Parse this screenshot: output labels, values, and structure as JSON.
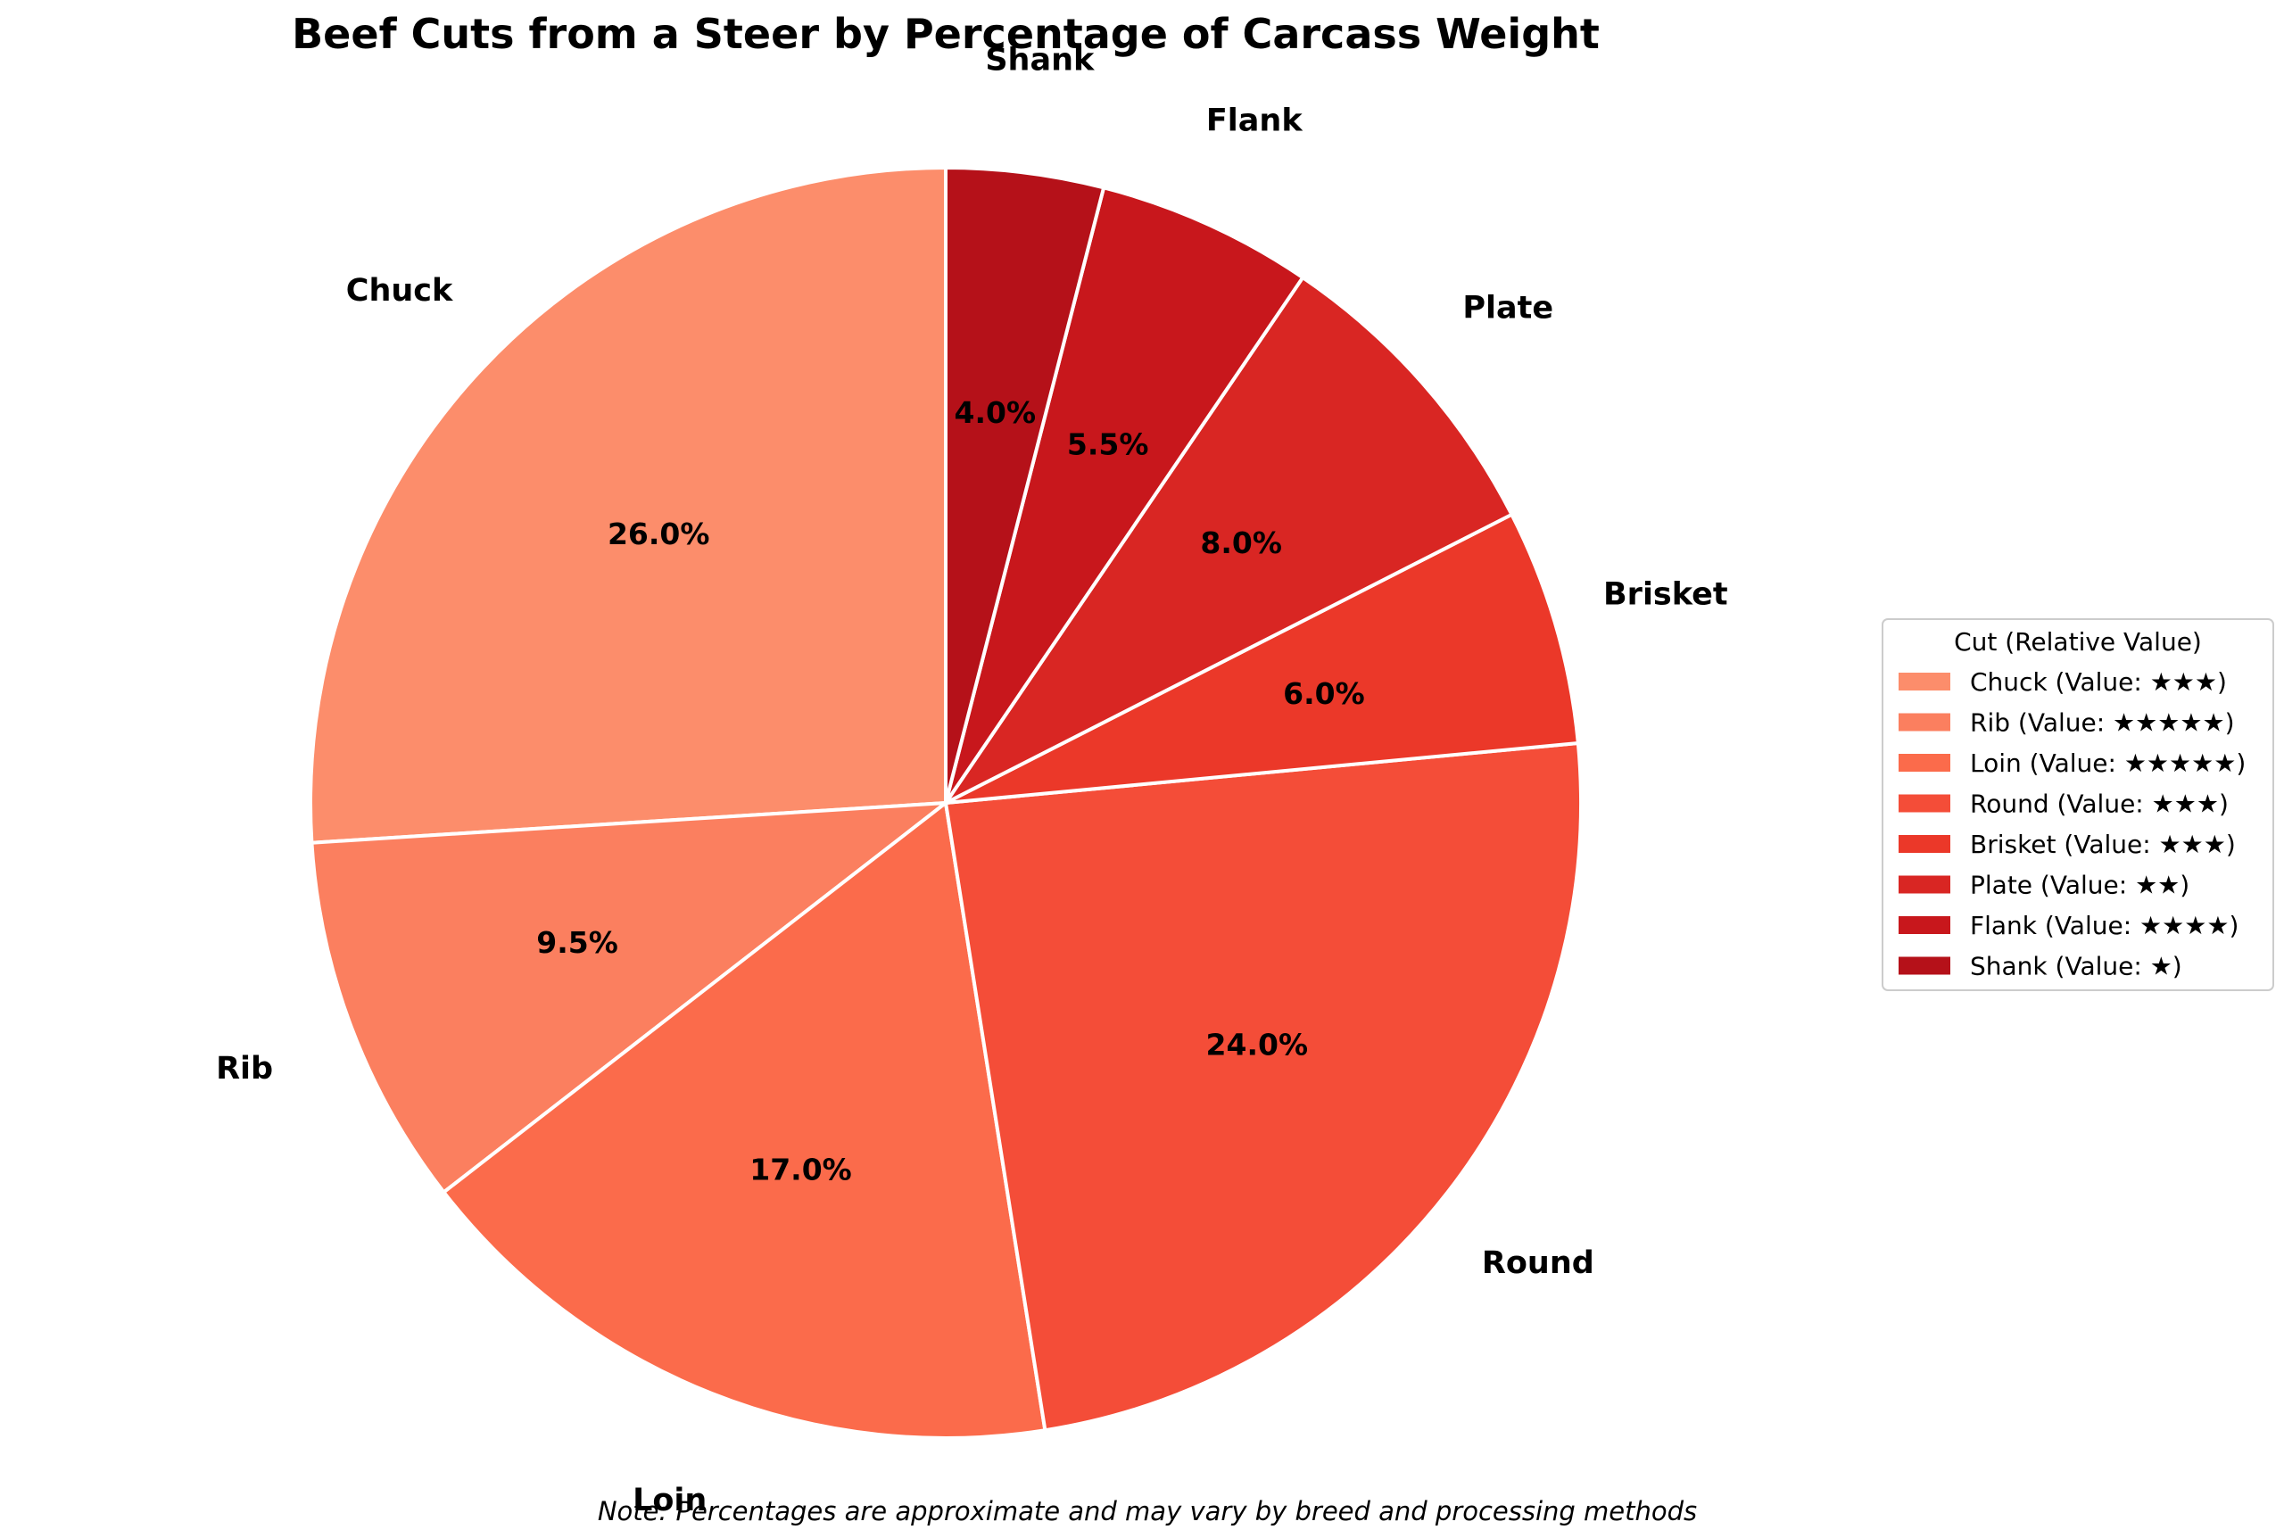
{
  "chart_data": {
    "type": "pie",
    "title": "Beef Cuts from a Steer by Percentage of Carcass Weight",
    "categories": [
      "Chuck",
      "Rib",
      "Loin",
      "Round",
      "Brisket",
      "Plate",
      "Flank",
      "Shank"
    ],
    "values": [
      26.0,
      9.5,
      17.0,
      24.0,
      6.0,
      8.0,
      5.5,
      4.0
    ],
    "value_labels": [
      "26.0%",
      "9.5%",
      "17.0%",
      "24.0%",
      "6.0%",
      "8.0%",
      "5.5%",
      "4.0%"
    ],
    "colors": [
      "#fc8d6b",
      "#fb7f5f",
      "#fb6b4b",
      "#f44d38",
      "#eb3829",
      "#d92623",
      "#c8171c",
      "#b51119"
    ],
    "start_angle_deg": 90,
    "direction": "counterclockwise",
    "edge_color": "#ffffff",
    "legend": {
      "title": "Cut (Relative Value)",
      "placement": "right",
      "entries": [
        "Chuck (Value: ★★★)",
        "Rib (Value: ★★★★★)",
        "Loin (Value: ★★★★★)",
        "Round (Value: ★★★)",
        "Brisket (Value: ★★★)",
        "Plate (Value: ★★)",
        "Flank (Value: ★★★★)",
        "Shank (Value: ★)"
      ]
    },
    "note": "Note: Percentages are approximate and may vary by breed and processing methods"
  }
}
